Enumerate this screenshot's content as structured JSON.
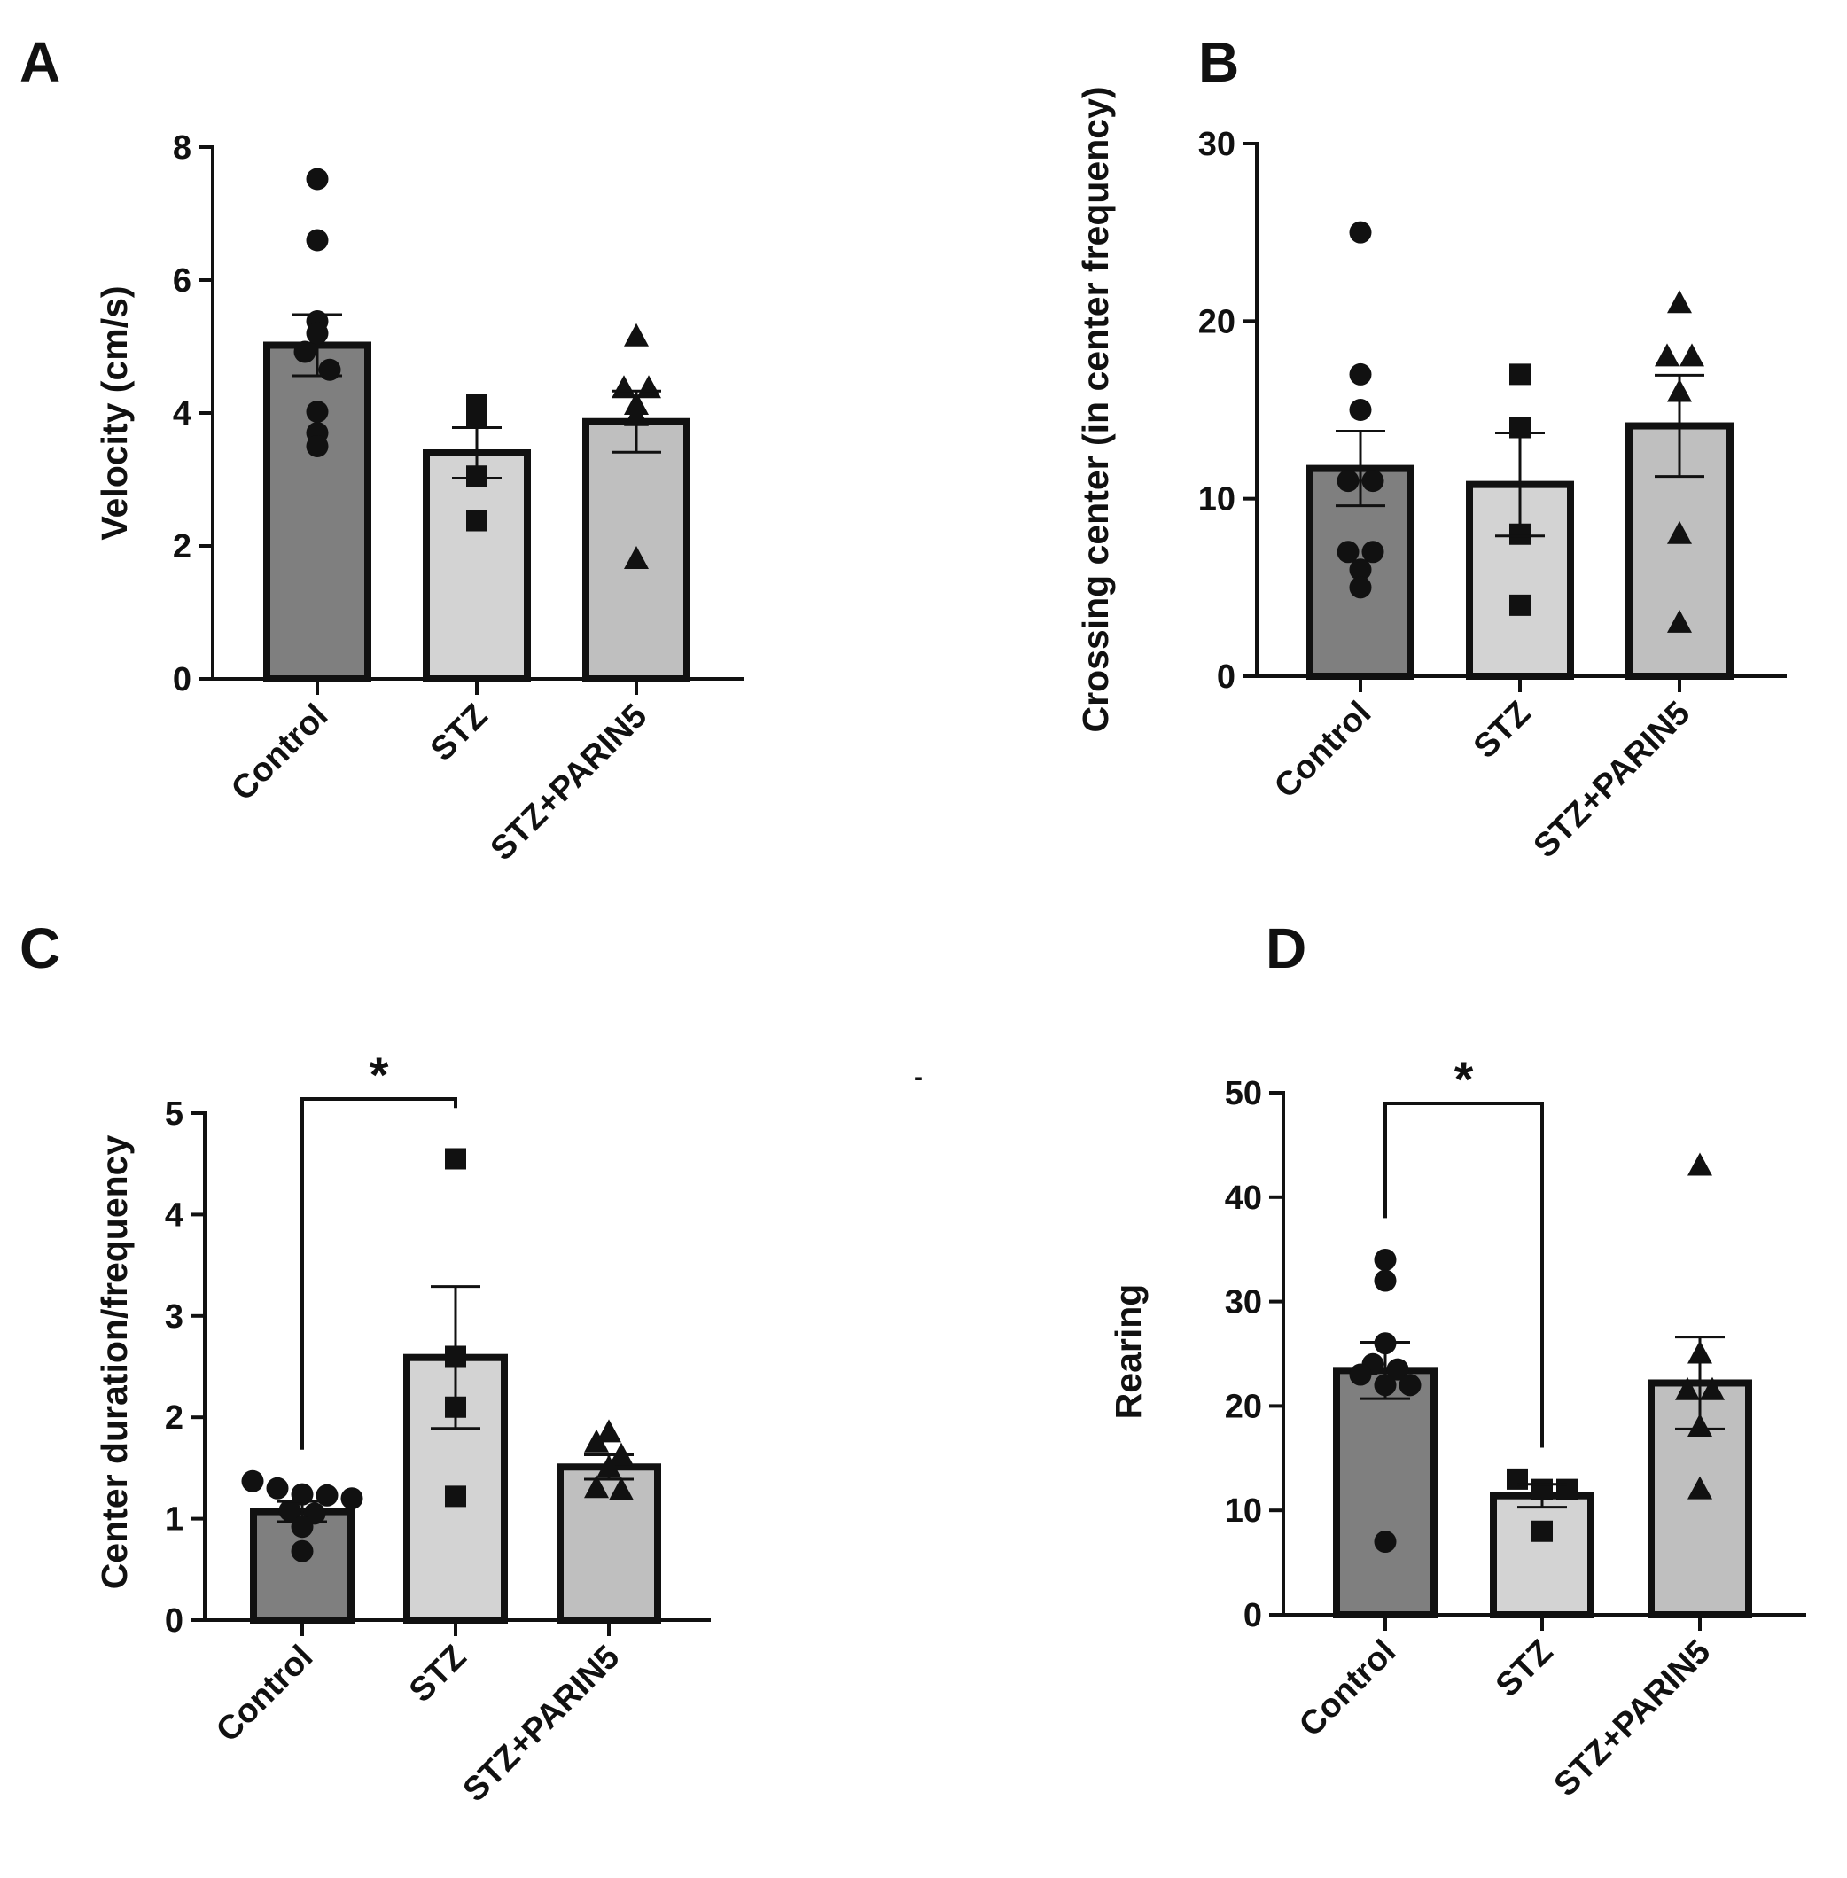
{
  "figure": {
    "stray_mark": "-"
  },
  "styles": {
    "ink": "#111111",
    "group_fills": [
      "#7f7f7f",
      "#d3d3d3",
      "#bfbfbf"
    ]
  },
  "chart_data": [
    {
      "panel": "A",
      "type": "bar",
      "categories": [
        "Control",
        "STZ",
        "STZ+PARIN5"
      ],
      "ylabel": "Velocity (cm/s)",
      "xlabel": "",
      "ylim": [
        0,
        8
      ],
      "yticks": [
        0,
        2,
        4,
        6,
        8
      ],
      "values": [
        5.02,
        3.4,
        3.87
      ],
      "sem": [
        0.46,
        0.38,
        0.46
      ],
      "markers": [
        "circle",
        "square",
        "triangle"
      ],
      "points": [
        [
          7.52,
          6.6,
          5.38,
          5.2,
          4.92,
          4.65,
          4.02,
          3.7,
          3.5
        ],
        [
          4.12,
          3.92,
          3.05,
          2.38
        ],
        [
          5.15,
          4.37,
          4.37,
          4.12,
          3.95,
          1.8
        ]
      ],
      "significance": []
    },
    {
      "panel": "B",
      "type": "bar",
      "categories": [
        "Control",
        "STZ",
        "STZ+PARIN5"
      ],
      "ylabel": "Crossing center (in center frequency)",
      "xlabel": "",
      "ylim": [
        0,
        30
      ],
      "yticks": [
        0,
        10,
        20,
        30
      ],
      "values": [
        11.7,
        10.8,
        14.1
      ],
      "sem": [
        2.1,
        2.9,
        2.85
      ],
      "markers": [
        "circle",
        "square",
        "triangle"
      ],
      "points": [
        [
          25,
          17,
          15,
          11,
          11,
          7,
          7,
          6,
          5
        ],
        [
          17,
          14,
          8,
          4
        ],
        [
          21,
          18,
          18,
          16,
          8,
          3
        ]
      ],
      "significance": []
    },
    {
      "panel": "C",
      "type": "bar",
      "categories": [
        "Control",
        "STZ",
        "STZ+PARIN5"
      ],
      "ylabel": "Center duration/frequency",
      "xlabel": "",
      "ylim": [
        0,
        5
      ],
      "yticks": [
        0,
        1,
        2,
        3,
        4,
        5
      ],
      "values": [
        1.07,
        2.59,
        1.51
      ],
      "sem": [
        0.1,
        0.7,
        0.12
      ],
      "markers": [
        "circle",
        "square",
        "triangle"
      ],
      "points": [
        [
          1.37,
          1.3,
          1.24,
          1.23,
          1.2,
          1.08,
          1.05,
          0.92,
          0.68
        ],
        [
          4.55,
          2.6,
          2.1,
          1.22
        ],
        [
          1.85,
          1.75,
          1.62,
          1.5,
          1.3,
          1.28
        ]
      ],
      "significance": [
        {
          "from": 0,
          "to": 1,
          "label": "*"
        }
      ]
    },
    {
      "panel": "D",
      "type": "bar",
      "categories": [
        "Control",
        "STZ",
        "STZ+PARIN5"
      ],
      "ylabel": "Rearing",
      "xlabel": "",
      "ylim": [
        0,
        50
      ],
      "yticks": [
        0,
        10,
        20,
        30,
        40,
        50
      ],
      "values": [
        23.4,
        11.4,
        22.2
      ],
      "sem": [
        2.7,
        1.1,
        4.4
      ],
      "markers": [
        "circle",
        "square",
        "triangle"
      ],
      "points": [
        [
          34,
          32,
          26,
          24,
          23.5,
          23,
          22,
          22,
          7
        ],
        [
          13,
          12,
          12,
          8
        ],
        [
          43,
          25,
          21.5,
          21.5,
          18,
          12
        ]
      ],
      "significance": [
        {
          "from": 0,
          "to": 1,
          "label": "*"
        }
      ]
    }
  ]
}
